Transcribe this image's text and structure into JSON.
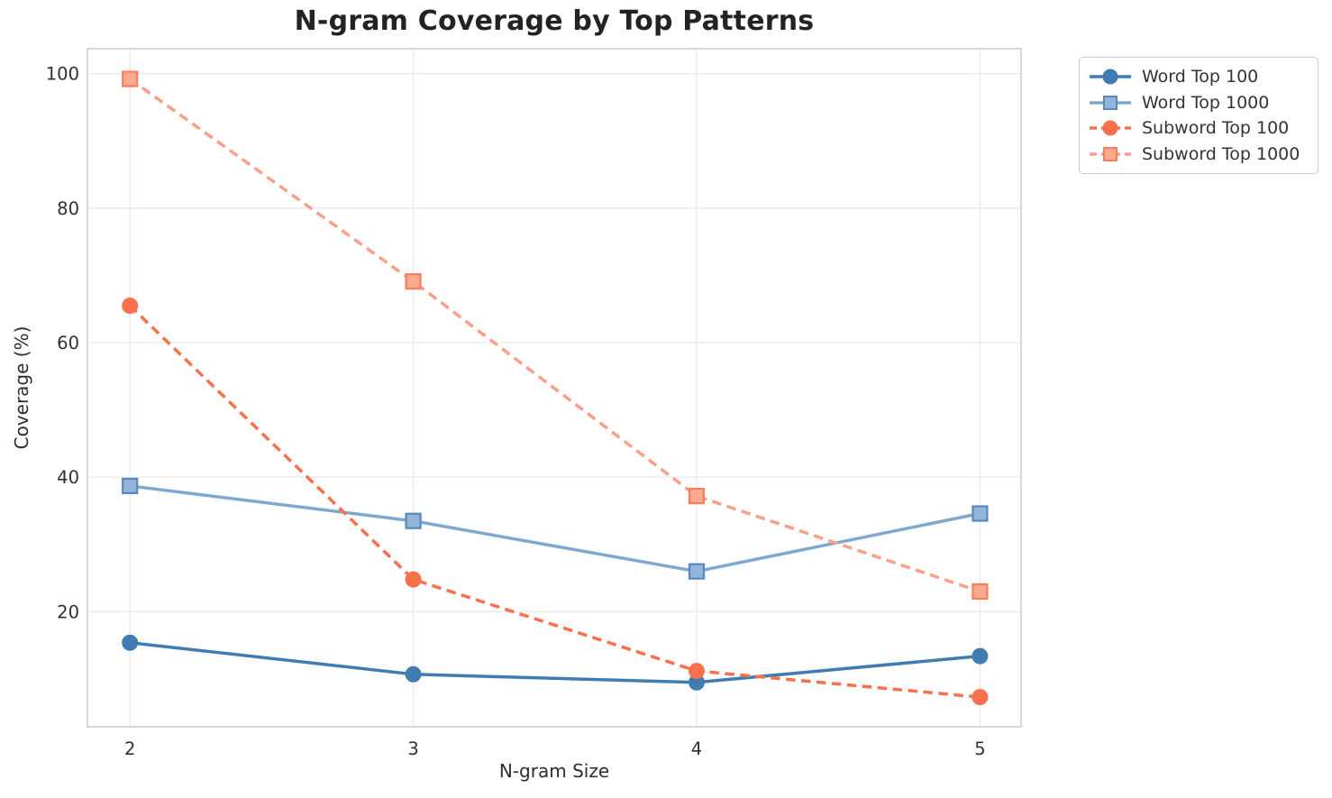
{
  "title": "N-gram Coverage by Top Patterns",
  "chart_data": {
    "type": "line",
    "title": "N-gram Coverage by Top Patterns",
    "xlabel": "N-gram Size",
    "ylabel": "Coverage (%)",
    "x": [
      2,
      3,
      4,
      5
    ],
    "x_ticks": [
      "2",
      "3",
      "4",
      "5"
    ],
    "y_ticks": [
      "20",
      "40",
      "60",
      "80",
      "100"
    ],
    "xlim": [
      1.85,
      5.145
    ],
    "ylim": [
      2.9,
      103.7
    ],
    "grid": true,
    "legend_position": "upper right, outside plot",
    "series": [
      {
        "name": "Word Top 100",
        "values": [
          15.4,
          10.7,
          9.5,
          13.4
        ],
        "color": "#3e7cb1",
        "dash": false,
        "marker": "circle",
        "marker_fill": "#3e7cb1",
        "marker_edge": "#3e7cb1"
      },
      {
        "name": "Word Top 1000",
        "values": [
          38.7,
          33.5,
          26.0,
          34.6
        ],
        "color": "#7fa8d0",
        "dash": false,
        "marker": "square",
        "marker_fill": "#93b5d9",
        "marker_edge": "#548bbe"
      },
      {
        "name": "Subword Top 100",
        "values": [
          65.5,
          24.8,
          11.2,
          7.3
        ],
        "color": "#f8714c",
        "dash": true,
        "marker": "circle",
        "marker_fill": "#f8714c",
        "marker_edge": "#f8714c"
      },
      {
        "name": "Subword Top 1000",
        "values": [
          99.2,
          69.1,
          37.2,
          23.0
        ],
        "color": "#fba088",
        "dash": true,
        "marker": "square",
        "marker_fill": "#fcaa8e",
        "marker_edge": "#f87f5b"
      }
    ]
  },
  "colors": {
    "background": "#ffffff",
    "grid": "#e9e9ec",
    "spine": "#cbcbcb",
    "title_text": "#232323",
    "tick_text": "#303030",
    "legend_border": "#cccccc",
    "legend_text": "#333333"
  }
}
